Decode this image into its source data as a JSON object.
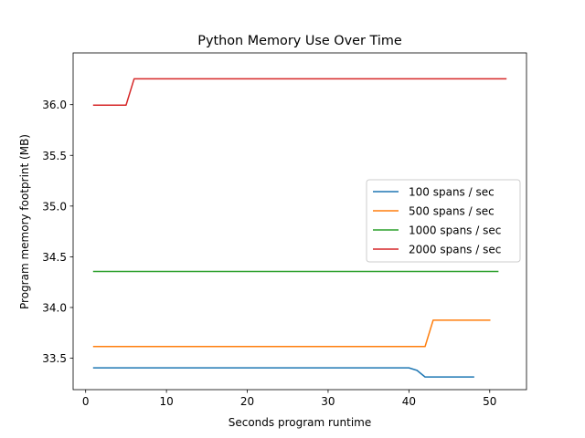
{
  "chart_data": {
    "type": "line",
    "title": "Python Memory Use Over Time",
    "xlabel": "Seconds program runtime",
    "ylabel": "Program memory footprint (MB)",
    "xlim": [
      -1.55,
      54.55
    ],
    "ylim": [
      33.19,
      36.51
    ],
    "xticks": [
      0,
      10,
      20,
      30,
      40,
      50
    ],
    "xtick_labels": [
      "0",
      "10",
      "20",
      "30",
      "40",
      "50"
    ],
    "yticks": [
      33.5,
      34.0,
      34.5,
      35.0,
      35.5,
      36.0
    ],
    "ytick_labels": [
      "33.5",
      "34.0",
      "34.5",
      "35.0",
      "35.5",
      "36.0"
    ],
    "grid": false,
    "legend_position": "center-right",
    "series": [
      {
        "name": "100 spans / sec",
        "color": "#1f77b4",
        "points": [
          [
            1,
            33.405
          ],
          [
            40,
            33.405
          ],
          [
            41,
            33.38
          ],
          [
            42,
            33.315
          ],
          [
            48,
            33.315
          ]
        ]
      },
      {
        "name": "500 spans / sec",
        "color": "#ff7f0e",
        "points": [
          [
            1,
            33.615
          ],
          [
            42,
            33.615
          ],
          [
            43,
            33.875
          ],
          [
            50,
            33.875
          ]
        ]
      },
      {
        "name": "1000 spans / sec",
        "color": "#2ca02c",
        "points": [
          [
            1,
            34.355
          ],
          [
            51,
            34.355
          ]
        ]
      },
      {
        "name": "2000 spans / sec",
        "color": "#d62728",
        "points": [
          [
            1,
            35.995
          ],
          [
            5,
            35.995
          ],
          [
            6,
            36.255
          ],
          [
            52,
            36.255
          ]
        ]
      }
    ]
  }
}
